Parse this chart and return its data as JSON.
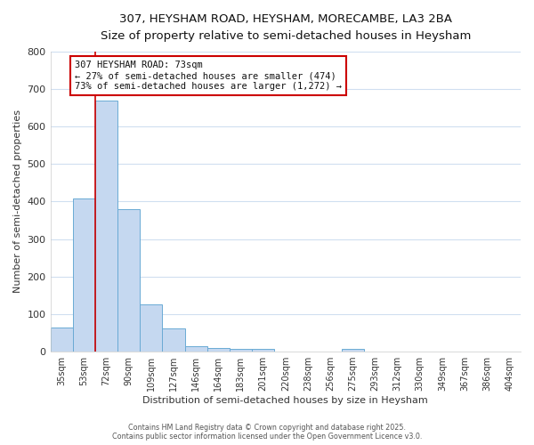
{
  "title1": "307, HEYSHAM ROAD, HEYSHAM, MORECAMBE, LA3 2BA",
  "title2": "Size of property relative to semi-detached houses in Heysham",
  "xlabel": "Distribution of semi-detached houses by size in Heysham",
  "ylabel": "Number of semi-detached properties",
  "categories": [
    "35sqm",
    "53sqm",
    "72sqm",
    "90sqm",
    "109sqm",
    "127sqm",
    "146sqm",
    "164sqm",
    "183sqm",
    "201sqm",
    "220sqm",
    "238sqm",
    "256sqm",
    "275sqm",
    "293sqm",
    "312sqm",
    "330sqm",
    "349sqm",
    "367sqm",
    "386sqm",
    "404sqm"
  ],
  "values": [
    65,
    408,
    670,
    380,
    125,
    63,
    14,
    10,
    8,
    8,
    0,
    0,
    0,
    7,
    0,
    0,
    0,
    0,
    0,
    0,
    0
  ],
  "bar_color": "#c5d8f0",
  "bar_edge_color": "#6aaad4",
  "highlight_index": 2,
  "highlight_color": "#cc0000",
  "annotation_title": "307 HEYSHAM ROAD: 73sqm",
  "annotation_line1": "← 27% of semi-detached houses are smaller (474)",
  "annotation_line2": "73% of semi-detached houses are larger (1,272) →",
  "annotation_box_color": "#ffffff",
  "annotation_box_edge": "#cc0000",
  "ylim": [
    0,
    800
  ],
  "yticks": [
    0,
    100,
    200,
    300,
    400,
    500,
    600,
    700,
    800
  ],
  "footer1": "Contains HM Land Registry data © Crown copyright and database right 2025.",
  "footer2": "Contains public sector information licensed under the Open Government Licence v3.0.",
  "bg_color": "#ffffff",
  "grid_color": "#d0dff0"
}
